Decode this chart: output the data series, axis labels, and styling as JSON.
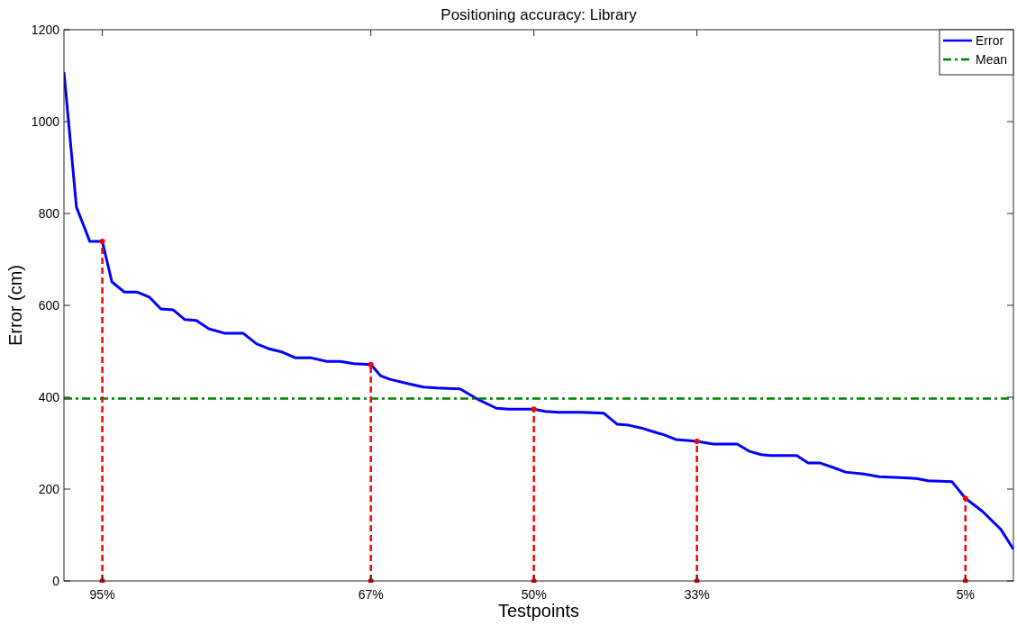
{
  "chart_data": {
    "type": "line",
    "title": "Positioning accuracy: Library",
    "xlabel": "Testpoints",
    "ylabel": "Error (cm)",
    "xlim": [
      99,
      0
    ],
    "ylim": [
      0,
      1200
    ],
    "yticks": [
      0,
      200,
      400,
      600,
      800,
      1000,
      1200
    ],
    "xticks": [
      {
        "value": 95,
        "label": "95%"
      },
      {
        "value": 67,
        "label": "67%"
      },
      {
        "value": 50,
        "label": "50%"
      },
      {
        "value": 33,
        "label": "33%"
      },
      {
        "value": 5,
        "label": "5%"
      }
    ],
    "grid": false,
    "legend": "top right",
    "marker": "none",
    "series": [
      {
        "name": "Error",
        "color": "#0000ff",
        "line_style": "solid",
        "x": [
          99,
          97.7,
          96.3,
          95,
          94,
          92.7,
          91.4,
          90.1,
          88.9,
          87.6,
          86.4,
          85.2,
          83.9,
          82.2,
          80.3,
          78.9,
          77.7,
          76.2,
          74.9,
          73.3,
          71.6,
          70.2,
          68.8,
          67,
          66,
          65,
          63,
          61.5,
          60.1,
          57.7,
          55.9,
          53.9,
          52.6,
          50,
          48.8,
          47.4,
          45,
          42.7,
          41.3,
          40.1,
          38.8,
          37.4,
          36.4,
          35.2,
          34,
          33,
          31.3,
          28.8,
          27.5,
          26.3,
          25.3,
          22.6,
          21.4,
          20.2,
          18.8,
          17.5,
          15.6,
          14,
          11.8,
          10.1,
          8.9,
          6.4,
          5,
          3.2,
          1.3,
          0
        ],
        "values": [
          1108,
          814,
          739,
          739,
          651,
          629,
          629,
          618,
          592,
          590,
          569,
          567,
          549,
          539,
          539,
          516,
          506,
          498,
          486,
          486,
          478,
          478,
          473,
          471,
          447,
          439,
          429,
          422,
          420,
          418,
          396,
          376,
          374,
          374,
          369,
          367,
          367,
          365,
          341,
          339,
          333,
          324,
          318,
          308,
          306,
          304,
          298,
          298,
          282,
          275,
          273,
          273,
          257,
          257,
          247,
          237,
          233,
          227,
          225,
          223,
          218,
          216,
          180,
          151,
          112,
          69
        ]
      },
      {
        "name": "Mean",
        "color": "#008000",
        "line_style": "dashdot",
        "x": [
          99,
          0
        ],
        "values": [
          397,
          397
        ]
      },
      {
        "color": "#ff0000",
        "line_style": "dashed",
        "marker": "circle",
        "x": [
          95,
          95
        ],
        "values": [
          0,
          739
        ]
      },
      {
        "color": "#ff0000",
        "line_style": "dashed",
        "marker": "circle",
        "x": [
          67,
          67
        ],
        "values": [
          0,
          471
        ]
      },
      {
        "color": "#ff0000",
        "line_style": "dashed",
        "marker": "circle",
        "x": [
          50,
          50
        ],
        "values": [
          0,
          374
        ]
      },
      {
        "color": "#ff0000",
        "line_style": "dashed",
        "marker": "circle",
        "x": [
          33,
          33
        ],
        "values": [
          0,
          304
        ]
      },
      {
        "color": "#ff0000",
        "line_style": "dashed",
        "marker": "circle",
        "x": [
          5,
          5
        ],
        "values": [
          0,
          180
        ]
      }
    ]
  }
}
